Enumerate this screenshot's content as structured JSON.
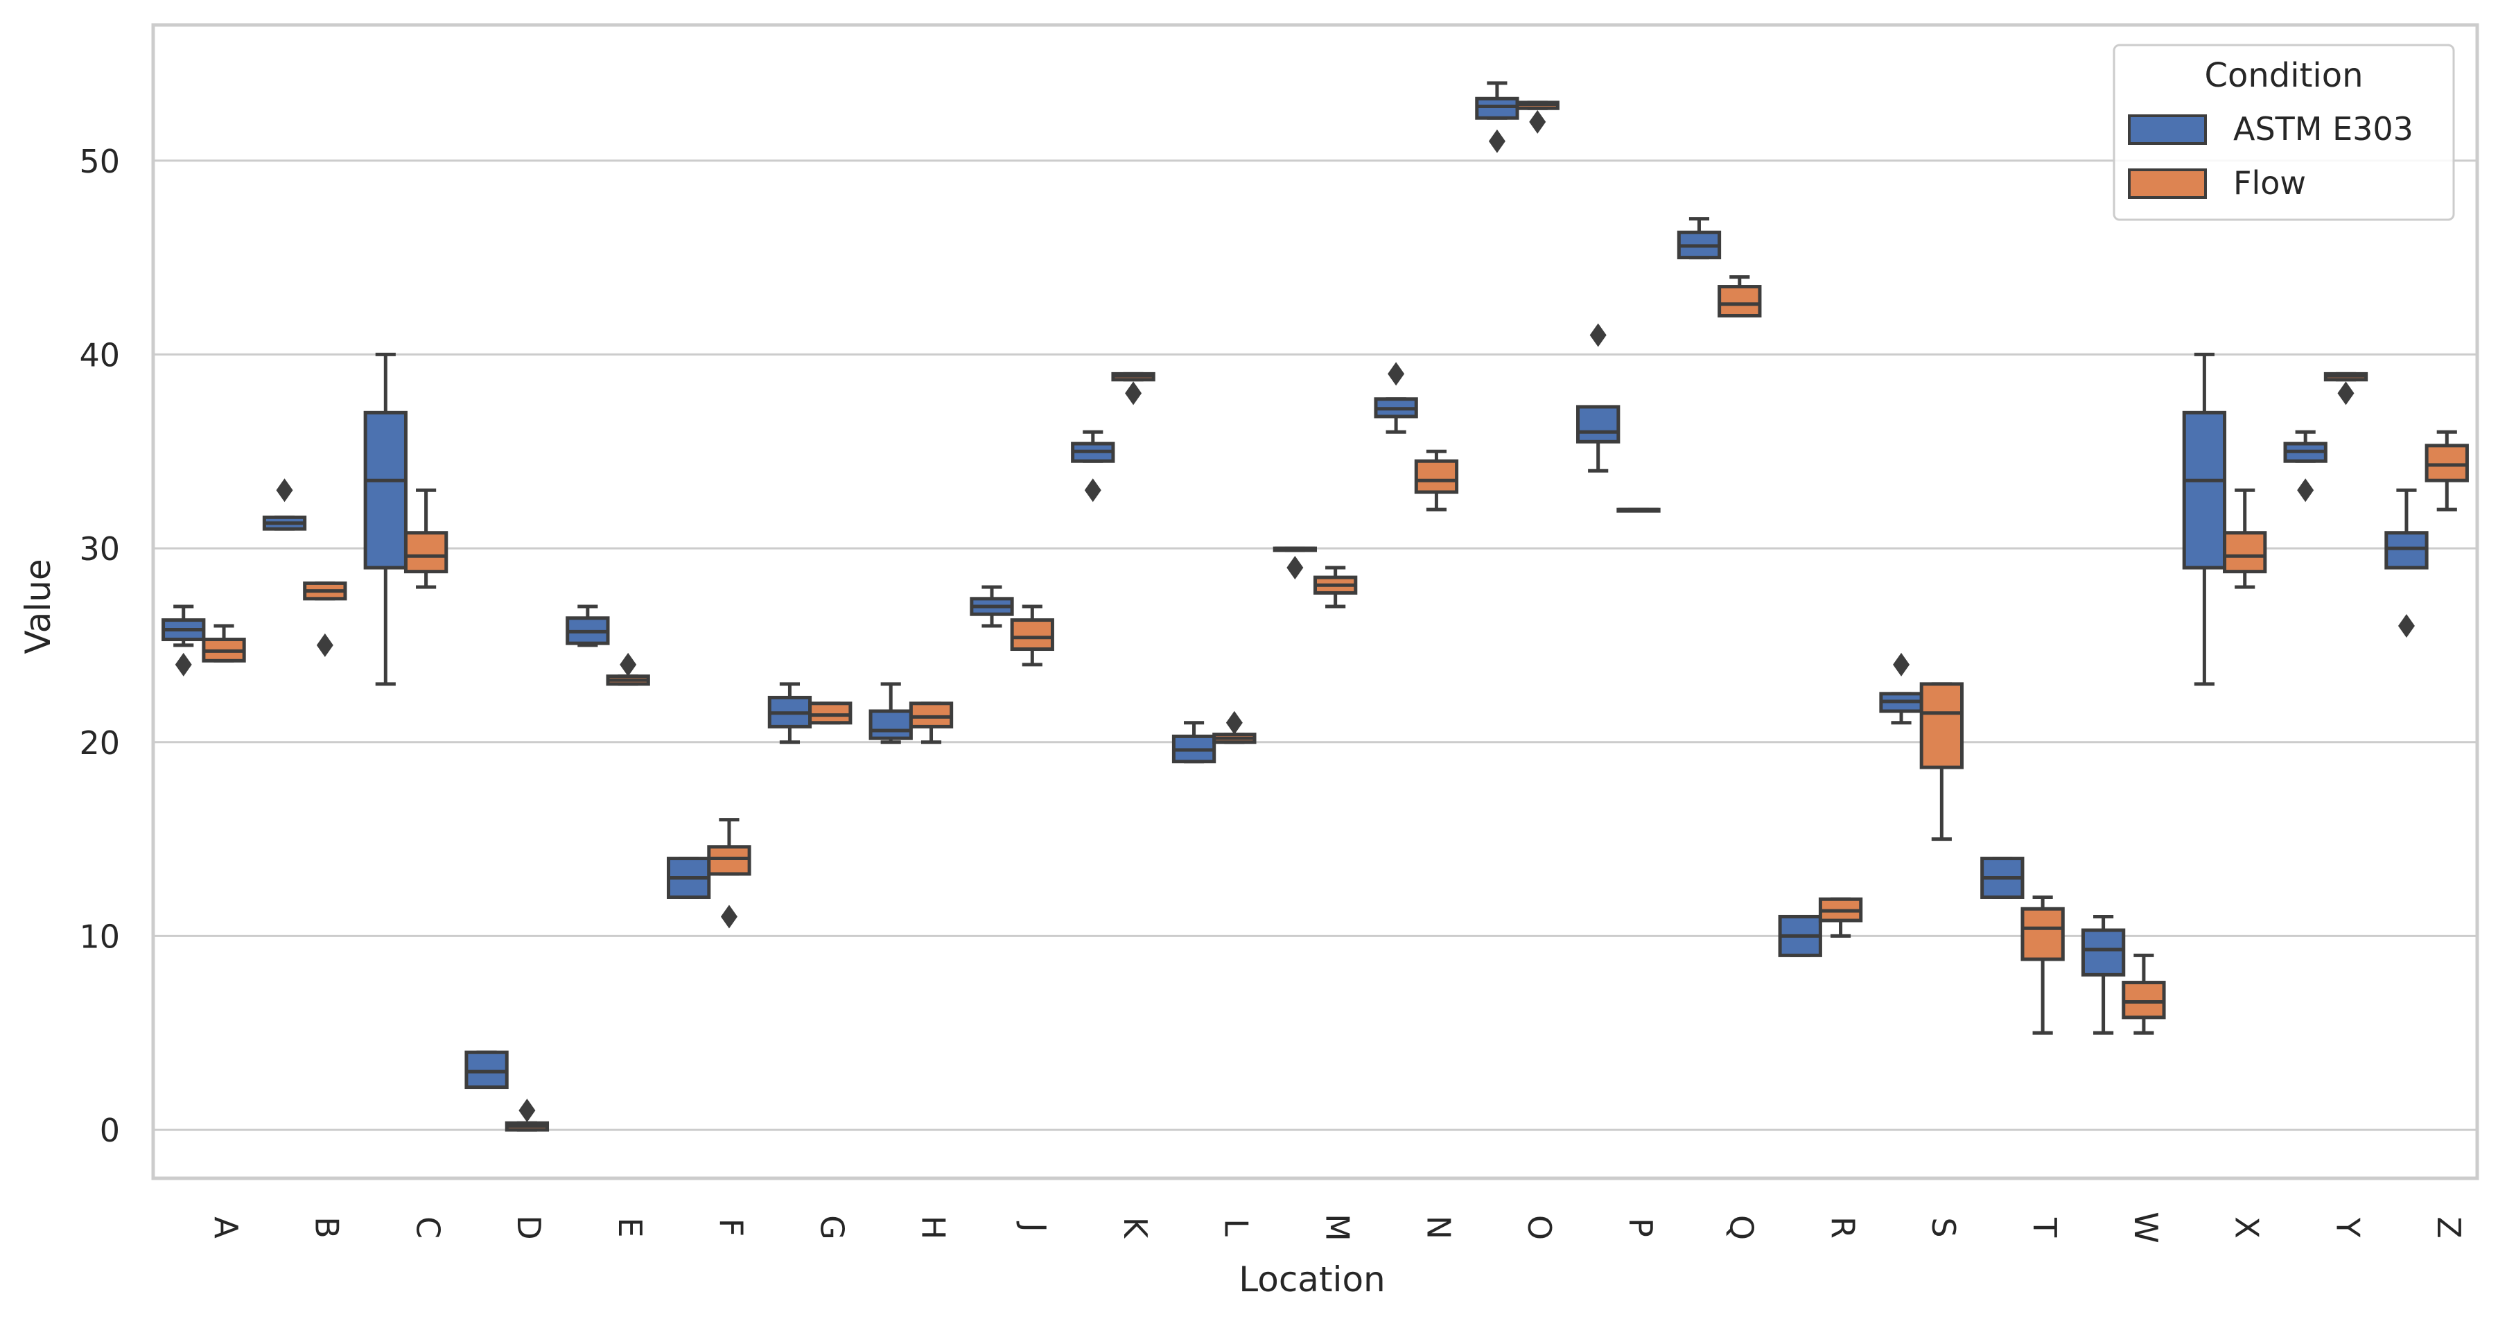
{
  "chart_data": {
    "type": "box",
    "title": "",
    "xlabel": "Location",
    "ylabel": "Value",
    "ylim": [
      -2.5,
      57
    ],
    "yticks": [
      0,
      10,
      20,
      30,
      40,
      50
    ],
    "grid": true,
    "legend_position": "top-right",
    "legend_title": "Condition",
    "categories": [
      "A",
      "B",
      "C",
      "D",
      "E",
      "F",
      "G",
      "H",
      "J",
      "K",
      "L",
      "M",
      "N",
      "O",
      "P",
      "Q",
      "R",
      "S",
      "T",
      "W",
      "X",
      "Y",
      "Z"
    ],
    "series": [
      {
        "name": "ASTM E303",
        "color": "#4c72b0",
        "boxes": [
          {
            "whislo": 25,
            "q1": 25.3,
            "med": 25.8,
            "q3": 26.3,
            "whishi": 27,
            "fliers": [
              24
            ]
          },
          {
            "whislo": 31,
            "q1": 31,
            "med": 31.3,
            "q3": 31.6,
            "whishi": 31.6,
            "fliers": [
              33
            ]
          },
          {
            "whislo": 23,
            "q1": 29,
            "med": 33.5,
            "q3": 37,
            "whishi": 40,
            "fliers": []
          },
          {
            "whislo": 2.2,
            "q1": 2.2,
            "med": 3,
            "q3": 4,
            "whishi": 4,
            "fliers": []
          },
          {
            "whislo": 25,
            "q1": 25.1,
            "med": 25.7,
            "q3": 26.4,
            "whishi": 27,
            "fliers": []
          },
          {
            "whislo": 12,
            "q1": 12,
            "med": 13,
            "q3": 14,
            "whishi": 14,
            "fliers": []
          },
          {
            "whislo": 20,
            "q1": 20.8,
            "med": 21.5,
            "q3": 22.3,
            "whishi": 23,
            "fliers": []
          },
          {
            "whislo": 20,
            "q1": 20.2,
            "med": 20.6,
            "q3": 21.6,
            "whishi": 23,
            "fliers": []
          },
          {
            "whislo": 26,
            "q1": 26.6,
            "med": 27,
            "q3": 27.4,
            "whishi": 28,
            "fliers": []
          },
          {
            "whislo": 34.5,
            "q1": 34.5,
            "med": 35,
            "q3": 35.4,
            "whishi": 36,
            "fliers": [
              33
            ]
          },
          {
            "whislo": 19,
            "q1": 19,
            "med": 19.6,
            "q3": 20.3,
            "whishi": 21,
            "fliers": []
          },
          {
            "whislo": 29.9,
            "q1": 29.9,
            "med": 30,
            "q3": 30,
            "whishi": 30,
            "fliers": [
              29
            ]
          },
          {
            "whislo": 36,
            "q1": 36.8,
            "med": 37.2,
            "q3": 37.7,
            "whishi": 37.7,
            "fliers": [
              39
            ]
          },
          {
            "whislo": 52.2,
            "q1": 52.2,
            "med": 52.8,
            "q3": 53.2,
            "whishi": 54,
            "fliers": [
              51
            ]
          },
          {
            "whislo": 34,
            "q1": 35.5,
            "med": 36,
            "q3": 37.3,
            "whishi": 37.3,
            "fliers": [
              41
            ]
          },
          {
            "whislo": 45,
            "q1": 45,
            "med": 45.6,
            "q3": 46.3,
            "whishi": 47,
            "fliers": []
          },
          {
            "whislo": 9,
            "q1": 9,
            "med": 10,
            "q3": 11,
            "whishi": 11,
            "fliers": []
          },
          {
            "whislo": 21,
            "q1": 21.6,
            "med": 22.1,
            "q3": 22.5,
            "whishi": 22.5,
            "fliers": [
              24
            ]
          },
          {
            "whislo": 12,
            "q1": 12,
            "med": 13,
            "q3": 14,
            "whishi": 14,
            "fliers": []
          },
          {
            "whislo": 5,
            "q1": 8,
            "med": 9.3,
            "q3": 10.3,
            "whishi": 11,
            "fliers": []
          },
          {
            "whislo": 23,
            "q1": 29,
            "med": 33.5,
            "q3": 37,
            "whishi": 40,
            "fliers": []
          },
          {
            "whislo": 34.5,
            "q1": 34.5,
            "med": 35,
            "q3": 35.4,
            "whishi": 36,
            "fliers": [
              33
            ]
          },
          {
            "whislo": 29,
            "q1": 29,
            "med": 30,
            "q3": 30.8,
            "whishi": 33,
            "fliers": [
              26
            ]
          }
        ]
      },
      {
        "name": "Flow",
        "color": "#dd8452",
        "boxes": [
          {
            "whislo": 24.2,
            "q1": 24.2,
            "med": 24.7,
            "q3": 25.3,
            "whishi": 26,
            "fliers": []
          },
          {
            "whislo": 27.4,
            "q1": 27.4,
            "med": 27.8,
            "q3": 28.2,
            "whishi": 28.2,
            "fliers": [
              25
            ]
          },
          {
            "whislo": 28,
            "q1": 28.8,
            "med": 29.6,
            "q3": 30.8,
            "whishi": 33,
            "fliers": []
          },
          {
            "whislo": 0,
            "q1": 0,
            "med": 0.2,
            "q3": 0.35,
            "whishi": 0.35,
            "fliers": [
              1
            ]
          },
          {
            "whislo": 23,
            "q1": 23,
            "med": 23.2,
            "q3": 23.4,
            "whishi": 23.4,
            "fliers": [
              24
            ]
          },
          {
            "whislo": 13.2,
            "q1": 13.2,
            "med": 14,
            "q3": 14.6,
            "whishi": 16,
            "fliers": [
              11
            ]
          },
          {
            "whislo": 21,
            "q1": 21,
            "med": 21.4,
            "q3": 22,
            "whishi": 22,
            "fliers": []
          },
          {
            "whislo": 20,
            "q1": 20.8,
            "med": 21.3,
            "q3": 22,
            "whishi": 22,
            "fliers": []
          },
          {
            "whislo": 24,
            "q1": 24.8,
            "med": 25.4,
            "q3": 26.3,
            "whishi": 27,
            "fliers": []
          },
          {
            "whislo": 38.7,
            "q1": 38.7,
            "med": 38.9,
            "q3": 39,
            "whishi": 39,
            "fliers": [
              38
            ]
          },
          {
            "whislo": 20,
            "q1": 20,
            "med": 20.2,
            "q3": 20.4,
            "whishi": 20.4,
            "fliers": [
              21
            ]
          },
          {
            "whislo": 27,
            "q1": 27.7,
            "med": 28.1,
            "q3": 28.5,
            "whishi": 29,
            "fliers": []
          },
          {
            "whislo": 32,
            "q1": 32.9,
            "med": 33.5,
            "q3": 34.5,
            "whishi": 35,
            "fliers": []
          },
          {
            "whislo": 52.7,
            "q1": 52.7,
            "med": 52.9,
            "q3": 53,
            "whishi": 53,
            "fliers": [
              52
            ]
          },
          {
            "whislo": 32,
            "q1": 32,
            "med": 32,
            "q3": 32,
            "whishi": 32,
            "fliers": []
          },
          {
            "whislo": 42,
            "q1": 42,
            "med": 42.6,
            "q3": 43.5,
            "whishi": 44,
            "fliers": []
          },
          {
            "whislo": 10,
            "q1": 10.8,
            "med": 11.3,
            "q3": 11.9,
            "whishi": 11.9,
            "fliers": []
          },
          {
            "whislo": 15,
            "q1": 18.7,
            "med": 21.5,
            "q3": 23,
            "whishi": 23,
            "fliers": []
          },
          {
            "whislo": 5,
            "q1": 8.8,
            "med": 10.4,
            "q3": 11.4,
            "whishi": 12,
            "fliers": []
          },
          {
            "whislo": 5,
            "q1": 5.8,
            "med": 6.6,
            "q3": 7.6,
            "whishi": 9,
            "fliers": []
          },
          {
            "whislo": 28,
            "q1": 28.8,
            "med": 29.6,
            "q3": 30.8,
            "whishi": 33,
            "fliers": []
          },
          {
            "whislo": 38.7,
            "q1": 38.7,
            "med": 38.9,
            "q3": 39,
            "whishi": 39,
            "fliers": [
              38
            ]
          },
          {
            "whislo": 32,
            "q1": 33.5,
            "med": 34.3,
            "q3": 35.3,
            "whishi": 36,
            "fliers": []
          }
        ]
      }
    ]
  }
}
